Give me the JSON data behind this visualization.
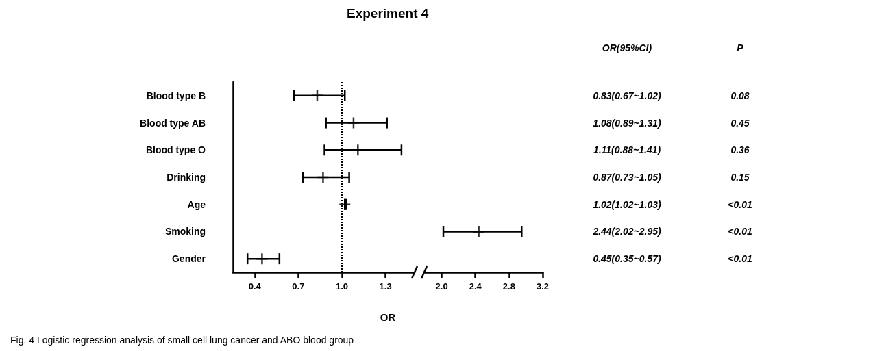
{
  "chart_data": [
    {
      "type": "scatter",
      "title": "Experiment 4",
      "xlabel": "OR",
      "orientation": "horizontal",
      "categories": [
        "Blood type B",
        "Blood type AB",
        "Blood type O",
        "Drinking",
        "Age",
        "Smoking",
        "Gender"
      ],
      "values": [
        0.83,
        1.08,
        1.11,
        0.87,
        1.02,
        null,
        0.45
      ],
      "errors": [
        [
          0.67,
          1.02
        ],
        [
          0.89,
          1.31
        ],
        [
          0.88,
          1.41
        ],
        [
          0.73,
          1.05
        ],
        [
          1.02,
          1.03
        ],
        null,
        [
          0.35,
          0.57
        ]
      ],
      "value_labels": [
        "0.83(0.67~1.02)",
        "1.08(0.89~1.31)",
        "1.11(0.88~1.41)",
        "0.87(0.73~1.05)",
        "1.02(1.02~1.03)",
        "2.44(2.02~2.95)",
        "0.45(0.35~0.57)"
      ],
      "color": "#000000",
      "xlim": [
        0.25,
        1.5
      ],
      "xticks": [
        0.4,
        0.7,
        {
          "value": 1,
          "label": "1.0"
        },
        1.3
      ],
      "ref_lines": [
        {
          "axis": "x",
          "value": 1,
          "line_style": "dotted",
          "color": "#000000"
        }
      ],
      "annotations": [
        "OR(95%CI)",
        "P",
        "0.08",
        "0.45",
        "0.36",
        "0.15",
        "<0.01",
        "<0.01",
        "<0.01",
        "Fig. 4 Logistic regression analysis of small cell lung cancer and ABO blood group"
      ],
      "grid": false
    },
    {
      "type": "scatter",
      "orientation": "horizontal",
      "categories": [
        null,
        null,
        null,
        null,
        null,
        null,
        null
      ],
      "values": [
        null,
        null,
        null,
        null,
        null,
        2.44,
        null
      ],
      "errors": [
        null,
        null,
        null,
        null,
        null,
        [
          2.02,
          2.95
        ],
        null
      ],
      "color": "#000000",
      "xlim": [
        1.8,
        3.2
      ],
      "xticks": [
        {
          "value": 2,
          "label": "2.0"
        },
        2.4,
        2.8,
        3.2
      ],
      "tick_labels": "x",
      "grid": false
    }
  ]
}
